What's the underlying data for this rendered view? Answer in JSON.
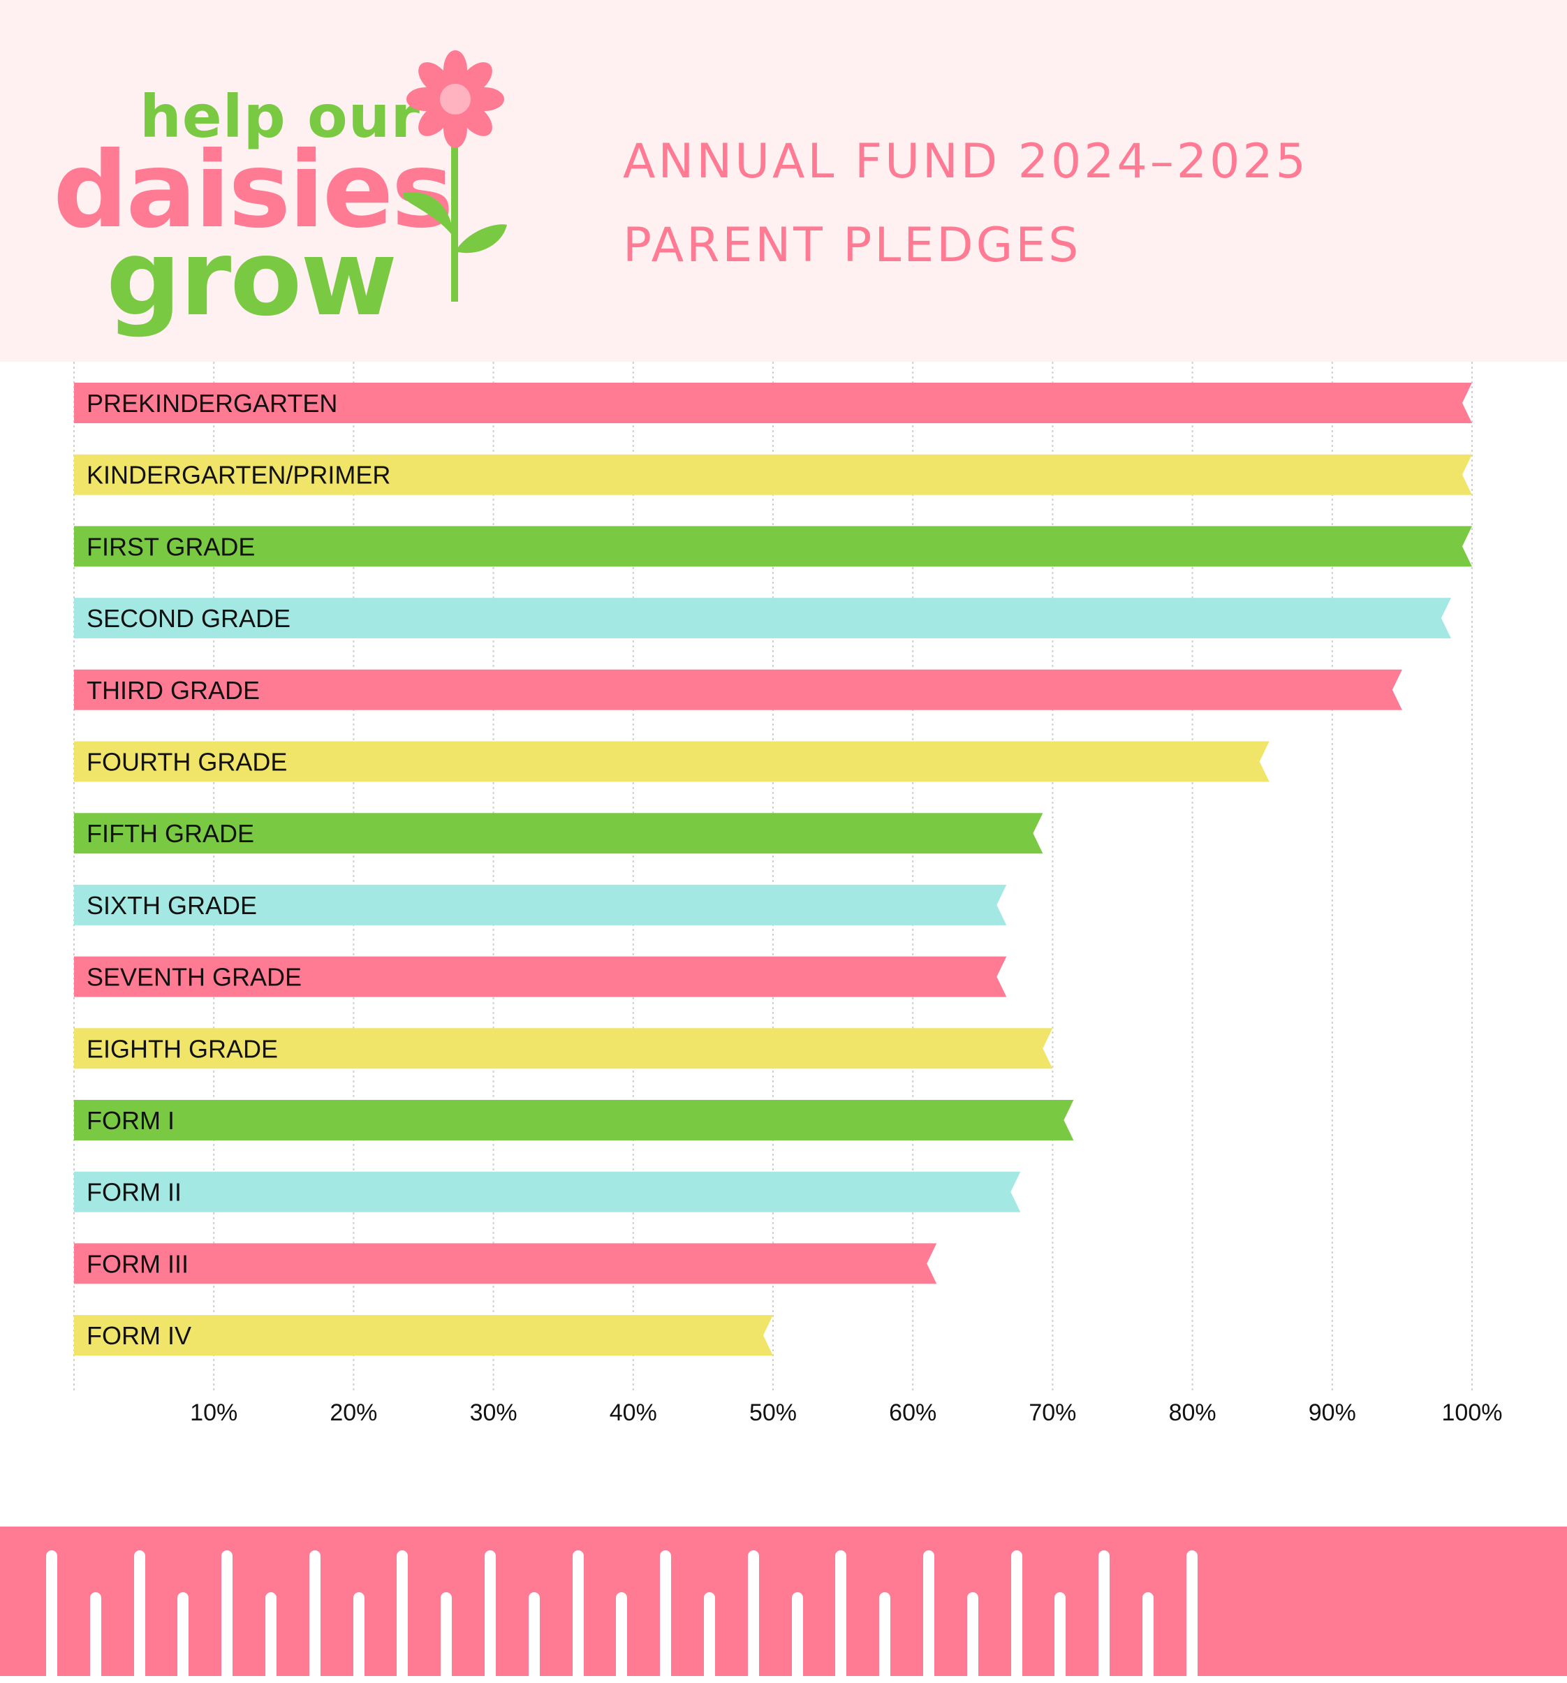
{
  "header": {
    "logo": {
      "line1": "help our",
      "line2": "daisies",
      "line3": "grow"
    },
    "title_line1": "ANNUAL FUND 2024–2025",
    "title_line2": "PARENT PLEDGES"
  },
  "colors": {
    "pink": "#ff7b93",
    "yellow": "#f0e568",
    "green": "#7ac943",
    "cyan": "#a3e8e3",
    "header_bg": "#fff0f2",
    "grid": "#cfcfcf"
  },
  "chart_data": {
    "type": "bar",
    "orientation": "horizontal",
    "title": "ANNUAL FUND 2024–2025 PARENT PLEDGES",
    "xlabel": "",
    "ylabel": "",
    "xlim": [
      0,
      100
    ],
    "grid": true,
    "categories": [
      "PREKINDERGARTEN",
      "KINDERGARTEN/PRIMER",
      "FIRST GRADE",
      "SECOND GRADE",
      "THIRD GRADE",
      "FOURTH GRADE",
      "FIFTH GRADE",
      "SIXTH GRADE",
      "SEVENTH GRADE",
      "EIGHTH GRADE",
      "FORM I",
      "FORM II",
      "FORM III",
      "FORM IV"
    ],
    "values": [
      100,
      100,
      100,
      98.5,
      95,
      85.5,
      69.3,
      66.7,
      66.7,
      70,
      71.5,
      67.7,
      61.7,
      50
    ],
    "bar_colors": [
      "pink",
      "yellow",
      "green",
      "cyan",
      "pink",
      "yellow",
      "green",
      "cyan",
      "pink",
      "yellow",
      "green",
      "cyan",
      "pink",
      "yellow"
    ],
    "ticks": [
      10,
      20,
      30,
      40,
      50,
      60,
      70,
      80,
      90,
      100
    ],
    "tick_labels": [
      "10%",
      "20%",
      "30%",
      "40%",
      "50%",
      "60%",
      "70%",
      "80%",
      "90%",
      "100%"
    ]
  }
}
